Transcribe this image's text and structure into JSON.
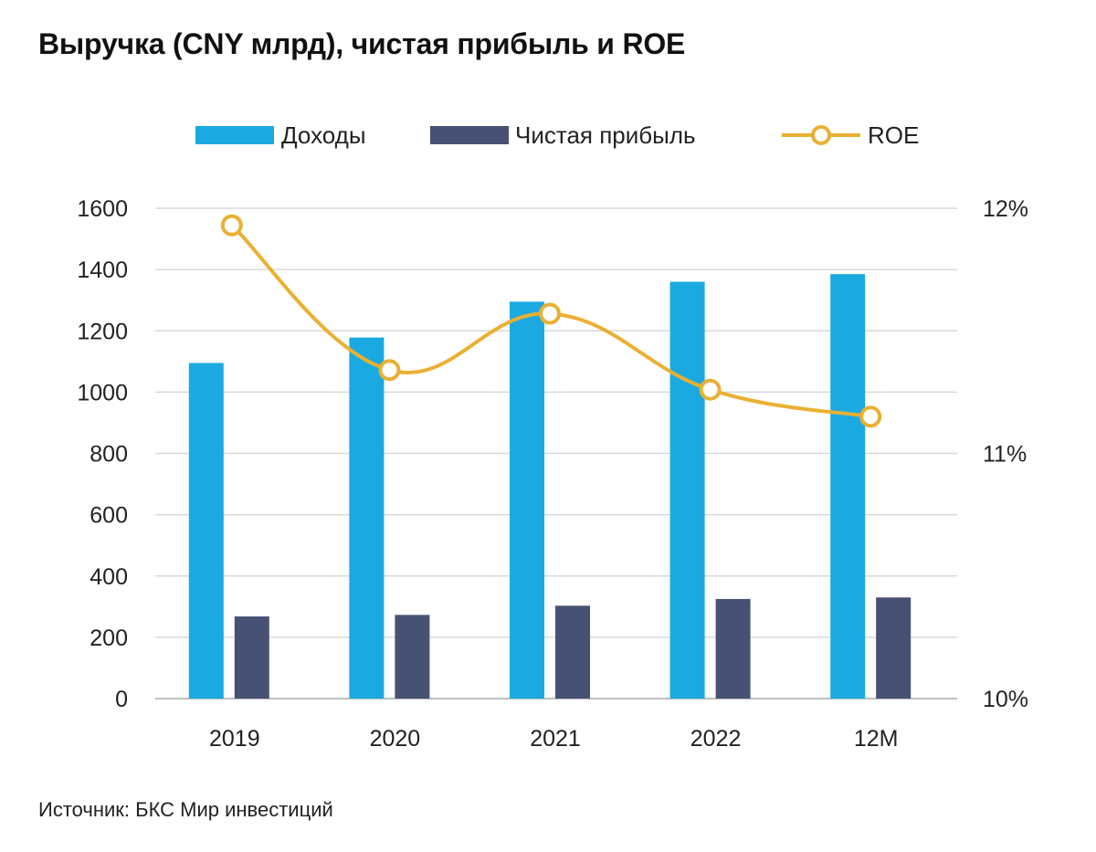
{
  "title": "Выручка (CNY млрд), чистая прибыль и ROE",
  "source": "Источник: БКС Мир инвестиций",
  "colors": {
    "revenue": "#1BA9E1",
    "profit": "#465174",
    "roe": "#EAB033",
    "grid": "#D9D9D9",
    "axis": "#BFBFBF"
  },
  "chart_data": {
    "type": "bar",
    "title": "Выручка (CNY млрд), чистая прибыль и ROE",
    "categories": [
      "2019",
      "2020",
      "2021",
      "2022",
      "12M"
    ],
    "series": [
      {
        "name": "Доходы",
        "type": "bar",
        "axis": "left",
        "values": [
          1095,
          1178,
          1295,
          1360,
          1385
        ]
      },
      {
        "name": "Чистая прибыль",
        "type": "bar",
        "axis": "left",
        "values": [
          268,
          273,
          303,
          325,
          330
        ]
      },
      {
        "name": "ROE",
        "type": "line",
        "axis": "right",
        "values": [
          11.93,
          11.34,
          11.57,
          11.26,
          11.15
        ]
      }
    ],
    "ylim": [
      0,
      1600
    ],
    "yticks": [
      0,
      200,
      400,
      600,
      800,
      1000,
      1200,
      1400,
      1600
    ],
    "y2lim": [
      10,
      12
    ],
    "y2ticks": [
      10,
      11,
      12
    ],
    "y2tick_labels": [
      "10%",
      "11%",
      "12%"
    ],
    "legend_position": "top",
    "grid": true
  }
}
